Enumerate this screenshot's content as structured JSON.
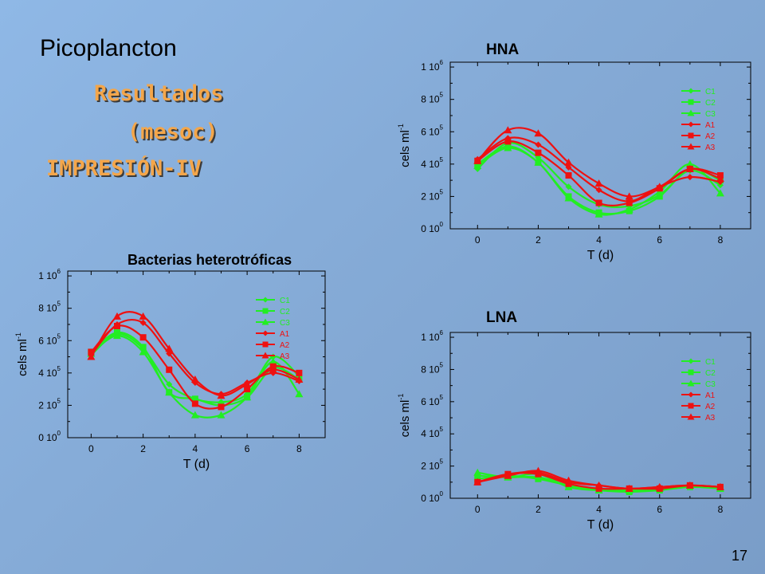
{
  "header": {
    "title": "Picoplancton",
    "line1": "Resultados",
    "line2": "(mesoc)",
    "line3": "IMPRESIÓN-IV"
  },
  "page_number": "17",
  "colors": {
    "green": "#22ee22",
    "red": "#ee1111",
    "subtitle": "#f4a64a"
  },
  "chart_data": [
    {
      "type": "line",
      "title": "HNA",
      "xlabel": "T (d)",
      "ylabel": "cels ml-1",
      "xticks": [
        0,
        2,
        4,
        6,
        8
      ],
      "yticks": [
        0,
        200000,
        400000,
        600000,
        800000,
        1000000
      ],
      "ytick_labels": [
        [
          "0 10",
          "0"
        ],
        [
          "2 10",
          "5"
        ],
        [
          "4 10",
          "5"
        ],
        [
          "6 10",
          "5"
        ],
        [
          "8 10",
          "5"
        ],
        [
          "1 10",
          "6"
        ]
      ],
      "xlim": [
        -0.9,
        9.0
      ],
      "ylim": [
        0,
        1030000
      ],
      "legend_position": "top-right",
      "x": [
        0,
        1,
        2,
        3,
        4,
        5,
        6,
        7,
        8
      ],
      "series": [
        {
          "name": "C1",
          "color": "green",
          "marker": "diamond",
          "values": [
            370000,
            530000,
            440000,
            260000,
            150000,
            140000,
            210000,
            360000,
            270000
          ]
        },
        {
          "name": "C2",
          "color": "green",
          "marker": "square",
          "values": [
            400000,
            510000,
            410000,
            200000,
            100000,
            110000,
            200000,
            370000,
            300000
          ]
        },
        {
          "name": "C3",
          "color": "green",
          "marker": "triangle",
          "values": [
            390000,
            500000,
            410000,
            190000,
            90000,
            120000,
            230000,
            400000,
            220000
          ]
        },
        {
          "name": "A1",
          "color": "red",
          "marker": "diamond",
          "values": [
            430000,
            560000,
            520000,
            380000,
            240000,
            170000,
            260000,
            320000,
            290000
          ]
        },
        {
          "name": "A2",
          "color": "red",
          "marker": "square",
          "values": [
            420000,
            540000,
            470000,
            330000,
            160000,
            160000,
            250000,
            370000,
            330000
          ]
        },
        {
          "name": "A3",
          "color": "red",
          "marker": "triangle",
          "values": [
            420000,
            610000,
            590000,
            410000,
            280000,
            200000,
            260000,
            370000,
            310000
          ]
        }
      ]
    },
    {
      "type": "line",
      "title": "Bacterias heterotróficas",
      "xlabel": "T (d)",
      "ylabel": "cels ml-1",
      "xticks": [
        0,
        2,
        4,
        6,
        8
      ],
      "yticks": [
        0,
        200000,
        400000,
        600000,
        800000,
        1000000
      ],
      "ytick_labels": [
        [
          "0 10",
          "0"
        ],
        [
          "2 10",
          "5"
        ],
        [
          "4 10",
          "5"
        ],
        [
          "6 10",
          "5"
        ],
        [
          "8 10",
          "5"
        ],
        [
          "1 10",
          "6"
        ]
      ],
      "xlim": [
        -0.9,
        9.0
      ],
      "ylim": [
        0,
        1030000
      ],
      "legend_position": "top-right",
      "x": [
        0,
        1,
        2,
        3,
        4,
        5,
        6,
        7,
        8
      ],
      "series": [
        {
          "name": "C1",
          "color": "green",
          "marker": "diamond",
          "values": [
            510000,
            640000,
            550000,
            330000,
            240000,
            220000,
            270000,
            500000,
            380000
          ]
        },
        {
          "name": "C2",
          "color": "green",
          "marker": "square",
          "values": [
            530000,
            650000,
            560000,
            280000,
            240000,
            200000,
            250000,
            430000,
            360000
          ]
        },
        {
          "name": "C3",
          "color": "green",
          "marker": "triangle",
          "values": [
            520000,
            630000,
            530000,
            280000,
            140000,
            140000,
            250000,
            470000,
            270000
          ]
        },
        {
          "name": "A1",
          "color": "red",
          "marker": "diamond",
          "values": [
            510000,
            700000,
            710000,
            520000,
            340000,
            270000,
            340000,
            400000,
            350000
          ]
        },
        {
          "name": "A2",
          "color": "red",
          "marker": "square",
          "values": [
            530000,
            690000,
            620000,
            420000,
            210000,
            190000,
            300000,
            440000,
            400000
          ]
        },
        {
          "name": "A3",
          "color": "red",
          "marker": "triangle",
          "values": [
            500000,
            750000,
            750000,
            550000,
            360000,
            260000,
            330000,
            420000,
            360000
          ]
        }
      ]
    },
    {
      "type": "line",
      "title": "LNA",
      "xlabel": "T (d)",
      "ylabel": "cels ml-1",
      "xticks": [
        0,
        2,
        4,
        6,
        8
      ],
      "yticks": [
        0,
        200000,
        400000,
        600000,
        800000,
        1000000
      ],
      "ytick_labels": [
        [
          "0 10",
          "0"
        ],
        [
          "2 10",
          "5"
        ],
        [
          "4 10",
          "5"
        ],
        [
          "6 10",
          "5"
        ],
        [
          "8 10",
          "5"
        ],
        [
          "1 10",
          "6"
        ]
      ],
      "xlim": [
        -0.9,
        9.0
      ],
      "ylim": [
        0,
        1030000
      ],
      "legend_position": "top-right",
      "x": [
        0,
        1,
        2,
        3,
        4,
        5,
        6,
        7,
        8
      ],
      "series": [
        {
          "name": "C1",
          "color": "green",
          "marker": "diamond",
          "values": [
            140000,
            130000,
            130000,
            80000,
            60000,
            50000,
            60000,
            80000,
            70000
          ]
        },
        {
          "name": "C2",
          "color": "green",
          "marker": "square",
          "values": [
            120000,
            140000,
            120000,
            80000,
            50000,
            40000,
            50000,
            70000,
            60000
          ]
        },
        {
          "name": "C3",
          "color": "green",
          "marker": "triangle",
          "values": [
            160000,
            130000,
            150000,
            70000,
            50000,
            50000,
            60000,
            80000,
            60000
          ]
        },
        {
          "name": "A1",
          "color": "red",
          "marker": "diamond",
          "values": [
            100000,
            150000,
            160000,
            100000,
            80000,
            60000,
            70000,
            80000,
            70000
          ]
        },
        {
          "name": "A2",
          "color": "red",
          "marker": "square",
          "values": [
            100000,
            150000,
            150000,
            90000,
            60000,
            60000,
            60000,
            80000,
            70000
          ]
        },
        {
          "name": "A3",
          "color": "red",
          "marker": "triangle",
          "values": [
            100000,
            140000,
            170000,
            110000,
            80000,
            60000,
            70000,
            80000,
            70000
          ]
        }
      ]
    }
  ]
}
